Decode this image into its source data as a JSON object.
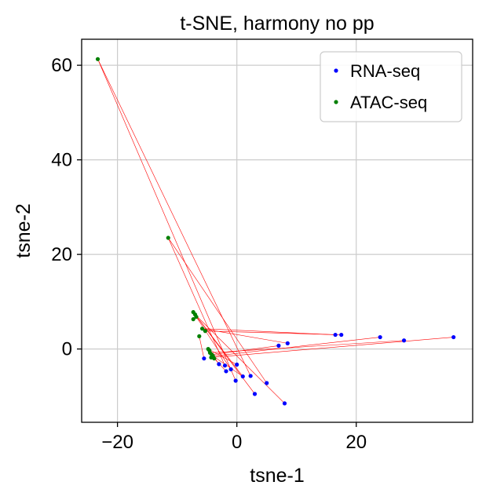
{
  "chart_data": {
    "type": "scatter",
    "title": "t-SNE, harmony no pp",
    "xlabel": "tsne-1",
    "ylabel": "tsne-2",
    "xlim": [
      -26,
      39.5
    ],
    "ylim": [
      -15.5,
      65.5
    ],
    "xticks": [
      -20,
      0,
      20
    ],
    "yticks": [
      0,
      20,
      40,
      60
    ],
    "xtick_labels": [
      "−20",
      "0",
      "20"
    ],
    "ytick_labels": [
      "0",
      "20",
      "40",
      "60"
    ],
    "grid": true,
    "legend_position": "top-right",
    "series": [
      {
        "name": "RNA-seq",
        "color": "#0000ff",
        "x": [
          36.3,
          28.0,
          24.0,
          17.5,
          16.5,
          8.5,
          7.0,
          -5.5,
          -3.0,
          -2.0,
          -1.8,
          -1.0,
          0.0,
          1.0,
          2.3,
          -0.2,
          5.0,
          3.0,
          8.0
        ],
        "y": [
          2.5,
          1.8,
          2.5,
          3.0,
          3.0,
          1.2,
          0.7,
          -2.0,
          -3.2,
          -3.5,
          -4.7,
          -4.3,
          -3.3,
          -5.8,
          -5.7,
          -6.7,
          -7.2,
          -9.5,
          -11.5
        ]
      },
      {
        "name": "ATAC-seq",
        "color": "#008000",
        "x": [
          -23.3,
          -11.5,
          -7.3,
          -7.0,
          -6.8,
          -7.3,
          -5.8,
          -5.3,
          -6.3,
          -4.8,
          -4.5,
          -4.2,
          -4.0,
          -3.8,
          -4.6,
          -4.3
        ],
        "y": [
          61.3,
          23.5,
          7.8,
          7.3,
          6.8,
          6.3,
          4.3,
          3.8,
          2.7,
          0.0,
          -0.8,
          -1.2,
          -1.5,
          -2.0,
          -0.3,
          -1.8
        ]
      }
    ],
    "links": [
      [
        [
          -23.3,
          61.3
        ],
        [
          2.3,
          -5.7
        ]
      ],
      [
        [
          -23.3,
          61.3
        ],
        [
          -0.2,
          -6.7
        ]
      ],
      [
        [
          -11.5,
          23.5
        ],
        [
          5.0,
          -7.2
        ]
      ],
      [
        [
          -11.5,
          23.5
        ],
        [
          -2.0,
          -3.5
        ]
      ],
      [
        [
          -7.0,
          7.3
        ],
        [
          8.0,
          -11.5
        ]
      ],
      [
        [
          -7.0,
          7.3
        ],
        [
          3.0,
          -9.5
        ]
      ],
      [
        [
          -7.3,
          7.8
        ],
        [
          1.0,
          -5.8
        ]
      ],
      [
        [
          -6.8,
          6.8
        ],
        [
          -1.0,
          -4.3
        ]
      ],
      [
        [
          -5.8,
          4.3
        ],
        [
          16.5,
          3.0
        ]
      ],
      [
        [
          -5.3,
          3.8
        ],
        [
          17.5,
          3.0
        ]
      ],
      [
        [
          -5.8,
          4.3
        ],
        [
          8.5,
          1.2
        ]
      ],
      [
        [
          -4.3,
          -1.8
        ],
        [
          36.3,
          2.5
        ]
      ],
      [
        [
          -4.5,
          -0.8
        ],
        [
          28.0,
          1.8
        ]
      ],
      [
        [
          -4.0,
          -1.5
        ],
        [
          24.0,
          2.5
        ]
      ],
      [
        [
          -4.2,
          -1.2
        ],
        [
          7.0,
          0.7
        ]
      ],
      [
        [
          -4.8,
          0.0
        ],
        [
          0.0,
          -3.3
        ]
      ],
      [
        [
          -4.6,
          -0.3
        ],
        [
          -3.0,
          -3.2
        ]
      ],
      [
        [
          -3.8,
          -2.0
        ],
        [
          -1.8,
          -4.7
        ]
      ],
      [
        [
          -6.3,
          2.7
        ],
        [
          -5.5,
          -2.0
        ]
      ],
      [
        [
          -4.0,
          -1.5
        ],
        [
          1.0,
          -5.8
        ]
      ]
    ]
  }
}
